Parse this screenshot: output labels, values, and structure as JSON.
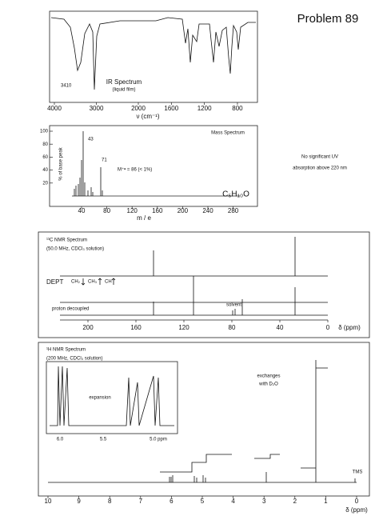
{
  "header": {
    "title": "Problem 89"
  },
  "ir": {
    "title": "IR Spectrum",
    "note": "(liquid film)",
    "peak_label": "3410",
    "xticks": [
      4000,
      3000,
      2000,
      1600,
      1200,
      800
    ],
    "xlabel": "ν (cm⁻¹)"
  },
  "mass": {
    "title": "Mass Spectrum",
    "ylabel": "% of base peak",
    "yticks": [
      100,
      80,
      60,
      40,
      20
    ],
    "peak_labels": [
      "43",
      "71"
    ],
    "molecular_ion": "M⁺• = 86  (< 1%)",
    "xticks": [
      40,
      80,
      120,
      160,
      200,
      240,
      280
    ],
    "xlabel": "m / e",
    "formula": "C₅H₁₀O"
  },
  "uv": {
    "lines": [
      "No significant UV",
      "absorption above 220 nm"
    ]
  },
  "c13": {
    "title": "¹³C NMR Spectrum",
    "note": "(50.0 MHz, CDCl₃ solution)",
    "dept": "DEPT",
    "dept_labels": [
      "CH₂",
      "CH₃",
      "CH"
    ],
    "decoupled": "proton decoupled",
    "solvent": "solvent",
    "xticks": [
      200,
      160,
      120,
      80,
      40,
      0
    ],
    "xlabel": "δ (ppm)"
  },
  "h1": {
    "title": "¹H NMR Spectrum",
    "note": "(200 MHz, CDCl₃ solution)",
    "expansion": "expansion",
    "inset_ticks": [
      "6.0",
      "5.5",
      "5.0 ppm"
    ],
    "exchange": [
      "exchanges",
      "with D₂O"
    ],
    "tms": "TMS",
    "xticks": [
      10,
      9,
      8,
      7,
      6,
      5,
      4,
      3,
      2,
      1,
      0
    ],
    "xlabel": "δ (ppm)"
  }
}
